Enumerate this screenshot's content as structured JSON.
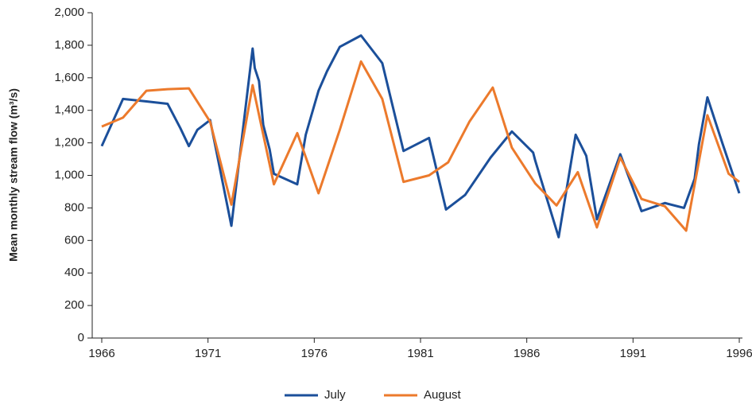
{
  "chart_data": {
    "type": "line",
    "y_label": "Mean monthly stream flow (m³/s)",
    "xlim": [
      1966,
      1996
    ],
    "xticks": [
      1966,
      1971,
      1976,
      1981,
      1986,
      1991,
      1996
    ],
    "ylim": [
      0,
      2000
    ],
    "yticks": [
      0,
      200,
      400,
      600,
      800,
      {
        "value": 1000,
        "label": "1,000"
      },
      {
        "value": 1200,
        "label": "1,200"
      },
      {
        "value": 1400,
        "label": "1,400"
      },
      {
        "value": 1600,
        "label": "1,600"
      },
      {
        "value": 1800,
        "label": "1,800"
      },
      {
        "value": 2000,
        "label": "2,000"
      }
    ],
    "legend": "bottom",
    "series": [
      {
        "name": "July",
        "color": "#1b4f9a",
        "x": [
          1966.0,
          1967.0,
          1968.1,
          1969.1,
          1969.7,
          1970.1,
          1970.5,
          1971.1,
          1972.1,
          1973.1,
          1973.2,
          1973.4,
          1973.6,
          1973.9,
          1974.1,
          1975.2,
          1975.6,
          1976.2,
          1976.6,
          1977.2,
          1978.2,
          1979.2,
          1980.2,
          1981.4,
          1982.2,
          1983.1,
          1984.3,
          1985.3,
          1986.3,
          1986.4,
          1987.5,
          1988.3,
          1988.8,
          1989.3,
          1990.4,
          1991.4,
          1992.5,
          1993.4,
          1993.9,
          1994.1,
          1994.5,
          1995.2,
          1996.0
        ],
        "values": [
          1180,
          1470,
          1455,
          1440,
          1290,
          1180,
          1280,
          1340,
          690,
          1780,
          1660,
          1580,
          1310,
          1160,
          1010,
          945,
          1250,
          1520,
          1640,
          1790,
          1860,
          1690,
          1150,
          1230,
          790,
          880,
          1110,
          1270,
          1140,
          1090,
          620,
          1250,
          1120,
          730,
          1130,
          780,
          830,
          800,
          980,
          1190,
          1480,
          1200,
          890
        ]
      },
      {
        "name": "August",
        "color": "#ec7a2c",
        "x": [
          1966.0,
          1967.0,
          1968.1,
          1969.1,
          1970.1,
          1971.1,
          1972.1,
          1973.1,
          1974.1,
          1975.2,
          1976.2,
          1977.2,
          1978.2,
          1979.2,
          1980.2,
          1981.4,
          1982.3,
          1983.3,
          1984.4,
          1985.3,
          1986.4,
          1987.4,
          1988.4,
          1989.3,
          1990.4,
          1991.4,
          1992.5,
          1993.5,
          1994.5,
          1995.5,
          1996.0
        ],
        "values": [
          1300,
          1355,
          1520,
          1530,
          1535,
          1330,
          820,
          1555,
          945,
          1260,
          890,
          1280,
          1700,
          1470,
          960,
          1000,
          1080,
          1330,
          1540,
          1170,
          950,
          815,
          1020,
          680,
          1110,
          855,
          810,
          660,
          1370,
          1010,
          960
        ]
      }
    ]
  }
}
